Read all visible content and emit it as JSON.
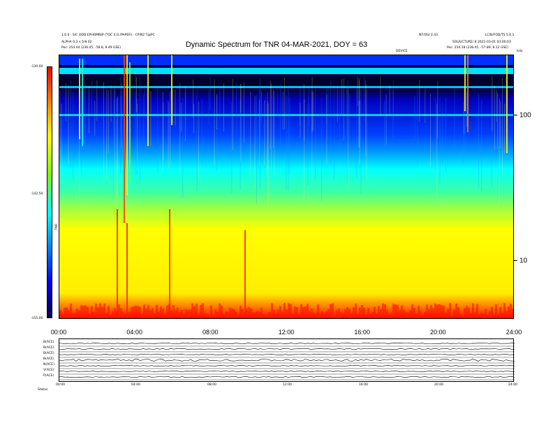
{
  "header": {
    "top_left_1": "1.0.0 - S/C ODD EPHOMNIP (TOC  S.O./PAPER)  - CP/N2 T@PC",
    "top_left_2": "ALPHA 0.3 n 5/9.02",
    "top_left_3": "Pos:     254.44 (236.45, -58.8, 8.49 GSE)",
    "top_right_1": "NT/OS/ 2.43",
    "top_right_2": "LC/B/FOD/TS 5.0.1",
    "top_right_3": "SOLR/CTURE/ 8 2021-03-01 03:00:03",
    "top_right_4": "Pos:     254.18 (238.45, -57.89, 8.12 GSE)",
    "corner_mark": "kHz",
    "centre_small": "DEVICE"
  },
  "chart_data": {
    "type": "heatmap",
    "title": "Dynamic Spectrum for TNR 04-MAR-2021, DOY = 63",
    "x_ticks": [
      "00:00",
      "04:00",
      "08:00",
      "12:00",
      "16:00",
      "20:00",
      "24:00"
    ],
    "y_ticks": [
      "100",
      "10"
    ],
    "y_scale": "log",
    "colorbar_labels": [
      "-130.00",
      "-142.50",
      "-155.00"
    ],
    "colorbar_title": "TNR",
    "colormap": [
      "#ff0000",
      "#ffff00",
      "#00ffff",
      "#0000ff",
      "#00004a"
    ],
    "lower_panel": {
      "row_labels": [
        "B(ACE)",
        "B(ACE)",
        "B(ACE)",
        "B(ACE)",
        "N(ACE)",
        "V(ACE)",
        "P(ACE)"
      ],
      "x_ticks": [
        "00:00",
        "04:00",
        "08:00",
        "12:00",
        "16:00",
        "20:00",
        "24:00"
      ],
      "footer": "Status"
    }
  }
}
